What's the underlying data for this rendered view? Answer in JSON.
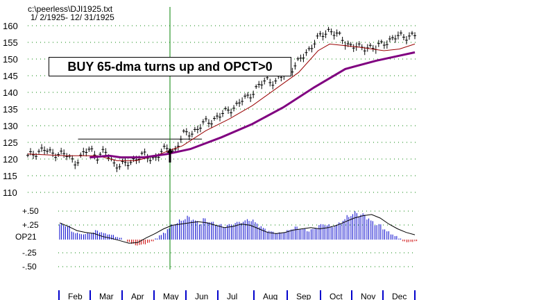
{
  "header": {
    "file_path": "c:\\peerless\\DJI1925.txt",
    "date_range": "1/ 2/1925- 12/ 31/1925"
  },
  "annotation": {
    "text": "BUY 65-dma turns up and OPCT>0",
    "signal_month": "May"
  },
  "colors": {
    "price_bars": "#000000",
    "ma_fast": "#990000",
    "ma_slow": "#800080",
    "signal_line": "#008000",
    "grid": "#008000",
    "osc_positive": "#0000cc",
    "osc_negative": "#cc0000",
    "month_ticks": "#0000cc"
  },
  "chart_data": [
    {
      "type": "line",
      "title": "",
      "ylim": [
        110,
        160
      ],
      "y_ticks": [
        "160",
        "155",
        "150",
        "145",
        "140",
        "135",
        "130",
        "125",
        "120",
        "115",
        "110"
      ],
      "x_months": [
        "Feb",
        "Mar",
        "Apr",
        "May",
        "Jun",
        "Jul",
        "Aug",
        "Sep",
        "Oct",
        "Nov",
        "Dec"
      ],
      "grid": true,
      "price_series": [
        {
          "t": 0.0,
          "v": 120.5
        },
        {
          "t": 0.02,
          "v": 122
        },
        {
          "t": 0.04,
          "v": 123
        },
        {
          "t": 0.06,
          "v": 121.5
        },
        {
          "t": 0.08,
          "v": 122
        },
        {
          "t": 0.1,
          "v": 121
        },
        {
          "t": 0.12,
          "v": 119
        },
        {
          "t": 0.14,
          "v": 121
        },
        {
          "t": 0.16,
          "v": 123
        },
        {
          "t": 0.18,
          "v": 121
        },
        {
          "t": 0.2,
          "v": 122
        },
        {
          "t": 0.22,
          "v": 119
        },
        {
          "t": 0.24,
          "v": 118
        },
        {
          "t": 0.26,
          "v": 118.5
        },
        {
          "t": 0.28,
          "v": 120.5
        },
        {
          "t": 0.3,
          "v": 121
        },
        {
          "t": 0.32,
          "v": 120
        },
        {
          "t": 0.34,
          "v": 121.5
        },
        {
          "t": 0.36,
          "v": 123
        },
        {
          "t": 0.38,
          "v": 122.5
        },
        {
          "t": 0.4,
          "v": 127
        },
        {
          "t": 0.42,
          "v": 128
        },
        {
          "t": 0.44,
          "v": 129
        },
        {
          "t": 0.46,
          "v": 131
        },
        {
          "t": 0.48,
          "v": 132
        },
        {
          "t": 0.5,
          "v": 133
        },
        {
          "t": 0.52,
          "v": 135
        },
        {
          "t": 0.54,
          "v": 136
        },
        {
          "t": 0.56,
          "v": 138
        },
        {
          "t": 0.58,
          "v": 140
        },
        {
          "t": 0.6,
          "v": 142
        },
        {
          "t": 0.62,
          "v": 144
        },
        {
          "t": 0.64,
          "v": 143
        },
        {
          "t": 0.66,
          "v": 145
        },
        {
          "t": 0.68,
          "v": 147
        },
        {
          "t": 0.7,
          "v": 149
        },
        {
          "t": 0.72,
          "v": 152
        },
        {
          "t": 0.74,
          "v": 155
        },
        {
          "t": 0.76,
          "v": 157
        },
        {
          "t": 0.78,
          "v": 159
        },
        {
          "t": 0.8,
          "v": 157
        },
        {
          "t": 0.82,
          "v": 155
        },
        {
          "t": 0.84,
          "v": 154
        },
        {
          "t": 0.86,
          "v": 153
        },
        {
          "t": 0.88,
          "v": 154
        },
        {
          "t": 0.9,
          "v": 153
        },
        {
          "t": 0.92,
          "v": 155
        },
        {
          "t": 0.94,
          "v": 156
        },
        {
          "t": 0.97,
          "v": 157
        },
        {
          "t": 1.0,
          "v": 157
        }
      ],
      "ma_fast": [
        {
          "t": 0.0,
          "v": 121.5
        },
        {
          "t": 0.1,
          "v": 121
        },
        {
          "t": 0.18,
          "v": 121
        },
        {
          "t": 0.23,
          "v": 119.5
        },
        {
          "t": 0.28,
          "v": 119.5
        },
        {
          "t": 0.33,
          "v": 121
        },
        {
          "t": 0.4,
          "v": 124
        },
        {
          "t": 0.46,
          "v": 128.5
        },
        {
          "t": 0.52,
          "v": 132
        },
        {
          "t": 0.58,
          "v": 136
        },
        {
          "t": 0.64,
          "v": 141
        },
        {
          "t": 0.7,
          "v": 146
        },
        {
          "t": 0.75,
          "v": 152.5
        },
        {
          "t": 0.78,
          "v": 154.5
        },
        {
          "t": 0.82,
          "v": 154
        },
        {
          "t": 0.86,
          "v": 153.5
        },
        {
          "t": 0.92,
          "v": 152.5
        },
        {
          "t": 0.96,
          "v": 153
        },
        {
          "t": 1.0,
          "v": 154.5
        }
      ],
      "ma_slow": [
        {
          "t": 0.16,
          "v": 120.5
        },
        {
          "t": 0.21,
          "v": 121
        },
        {
          "t": 0.24,
          "v": 120.5
        },
        {
          "t": 0.3,
          "v": 120.5
        },
        {
          "t": 0.36,
          "v": 121.5
        },
        {
          "t": 0.42,
          "v": 123
        },
        {
          "t": 0.5,
          "v": 126.5
        },
        {
          "t": 0.58,
          "v": 130.5
        },
        {
          "t": 0.66,
          "v": 135.5
        },
        {
          "t": 0.74,
          "v": 141.5
        },
        {
          "t": 0.82,
          "v": 147
        },
        {
          "t": 0.9,
          "v": 149.5
        },
        {
          "t": 0.96,
          "v": 151
        },
        {
          "t": 1.0,
          "v": 152
        }
      ],
      "resistance_level": 126,
      "resistance_t": [
        0.13,
        0.45
      ]
    },
    {
      "type": "bar",
      "title": "",
      "series_label": "OP21",
      "ylim": [
        -0.5,
        0.5
      ],
      "y_ticks": [
        "+.50",
        "+.25",
        "-.25",
        "-.50"
      ],
      "values": [
        0.28,
        0.26,
        0.24,
        0.14,
        0.12,
        0.1,
        0.1,
        0.11,
        0.13,
        0.16,
        0.14,
        0.11,
        0.1,
        0.08,
        0.05,
        0.03,
        0.0,
        -0.04,
        -0.08,
        -0.1,
        -0.1,
        -0.08,
        -0.06,
        -0.03,
        0.02,
        0.08,
        0.12,
        0.2,
        0.26,
        0.3,
        0.34,
        0.38,
        0.4,
        0.38,
        0.32,
        0.3,
        0.36,
        0.34,
        0.3,
        0.28,
        0.26,
        0.24,
        0.26,
        0.28,
        0.3,
        0.32,
        0.33,
        0.36,
        0.35,
        0.3,
        0.24,
        0.2,
        0.16,
        0.14,
        0.12,
        0.12,
        0.14,
        0.16,
        0.2,
        0.22,
        0.2,
        0.18,
        0.16,
        0.18,
        0.22,
        0.26,
        0.28,
        0.26,
        0.24,
        0.26,
        0.3,
        0.36,
        0.42,
        0.46,
        0.48,
        0.46,
        0.44,
        0.4,
        0.32,
        0.28,
        0.26,
        0.2,
        0.14,
        0.1,
        0.06,
        0.02,
        -0.03,
        -0.05,
        -0.04,
        -0.03
      ],
      "avg_line": [
        0.28,
        0.22,
        0.15,
        0.12,
        0.1,
        0.05,
        0.02,
        -0.02,
        -0.06,
        -0.05,
        0.03,
        0.1,
        0.18,
        0.24,
        0.26,
        0.28,
        0.3,
        0.28,
        0.24,
        0.2,
        0.22,
        0.26,
        0.24,
        0.18,
        0.12,
        0.1,
        0.12,
        0.16,
        0.18,
        0.2,
        0.18,
        0.2,
        0.24,
        0.3,
        0.36,
        0.4,
        0.42,
        0.36,
        0.26,
        0.18,
        0.12,
        0.08
      ]
    }
  ]
}
